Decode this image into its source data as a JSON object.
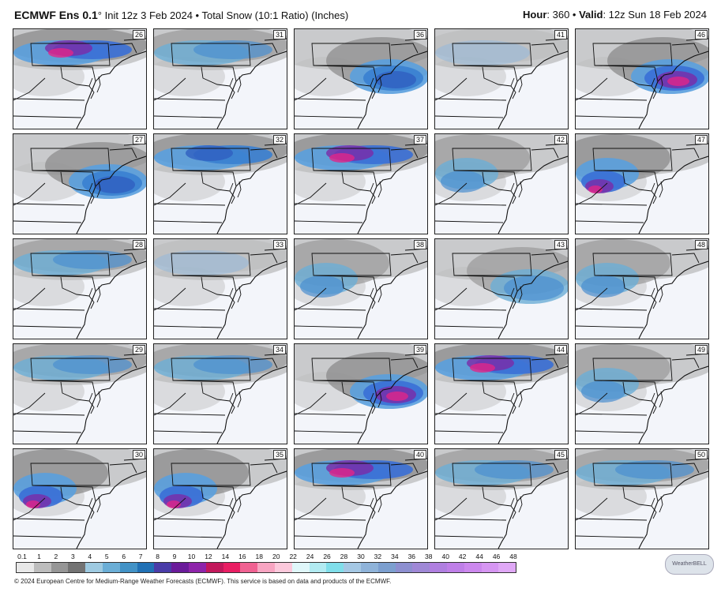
{
  "header": {
    "model": "ECMWF Ens 0.1",
    "degree": "°",
    "init_text": "Init 12z 3 Feb 2024 • Total Snow (10:1 Ratio) (Inches)",
    "hour_label": "Hour",
    "hour_value": ": 360 • ",
    "valid_label": "Valid",
    "valid_value": ": 12z Sun 18 Feb 2024"
  },
  "panels": [
    {
      "member": "26",
      "intensity": "heavy",
      "band": "north"
    },
    {
      "member": "31",
      "intensity": "light",
      "band": "north"
    },
    {
      "member": "36",
      "intensity": "moderate",
      "band": "ocean"
    },
    {
      "member": "41",
      "intensity": "trace",
      "band": "north"
    },
    {
      "member": "46",
      "intensity": "heavy",
      "band": "ocean"
    },
    {
      "member": "27",
      "intensity": "moderate",
      "band": "ocean"
    },
    {
      "member": "32",
      "intensity": "moderate",
      "band": "north"
    },
    {
      "member": "37",
      "intensity": "heavy",
      "band": "north"
    },
    {
      "member": "42",
      "intensity": "light",
      "band": "west"
    },
    {
      "member": "47",
      "intensity": "heavy",
      "band": "west"
    },
    {
      "member": "28",
      "intensity": "light",
      "band": "north"
    },
    {
      "member": "33",
      "intensity": "trace",
      "band": "north"
    },
    {
      "member": "38",
      "intensity": "light",
      "band": "west"
    },
    {
      "member": "43",
      "intensity": "light",
      "band": "ocean"
    },
    {
      "member": "48",
      "intensity": "light",
      "band": "west"
    },
    {
      "member": "29",
      "intensity": "light",
      "band": "north"
    },
    {
      "member": "34",
      "intensity": "light",
      "band": "north"
    },
    {
      "member": "39",
      "intensity": "heavy",
      "band": "ocean"
    },
    {
      "member": "44",
      "intensity": "heavy",
      "band": "north"
    },
    {
      "member": "49",
      "intensity": "light",
      "band": "west"
    },
    {
      "member": "30",
      "intensity": "heavy",
      "band": "west"
    },
    {
      "member": "35",
      "intensity": "heavy",
      "band": "west"
    },
    {
      "member": "40",
      "intensity": "heavy",
      "band": "north"
    },
    {
      "member": "45",
      "intensity": "light",
      "band": "north"
    },
    {
      "member": "50",
      "intensity": "light",
      "band": "north"
    }
  ],
  "colorbar": {
    "labels": [
      "0.1",
      "1",
      "2",
      "3",
      "4",
      "5",
      "6",
      "7",
      "8",
      "9",
      "10",
      "12",
      "14",
      "16",
      "18",
      "20",
      "22",
      "24",
      "26",
      "28",
      "30",
      "32",
      "34",
      "36",
      "38",
      "40",
      "42",
      "44",
      "46",
      "48"
    ],
    "colors": [
      "#e8e8e8",
      "#bdbdbd",
      "#969696",
      "#737373",
      "#9ecae1",
      "#6baed6",
      "#4292c6",
      "#2171b5",
      "#4a3ca8",
      "#6a1b9a",
      "#8e24aa",
      "#c2185b",
      "#e91e63",
      "#f06292",
      "#f8a5c2",
      "#fcc9dc",
      "#e0f7fa",
      "#b2ebf2",
      "#80deea",
      "#a5c8e4",
      "#8fb3d9",
      "#7c9fcf",
      "#8d8fd0",
      "#9f88d6",
      "#b07fe0",
      "#bf7fe8",
      "#cc88ee",
      "#d696f2",
      "#e0a8f6"
    ]
  },
  "logo_text": "WeatherBELL",
  "footer": "© 2024 European Centre for Medium-Range Weather Forecasts (ECMWF). This service is based on data and products of the ECMWF."
}
